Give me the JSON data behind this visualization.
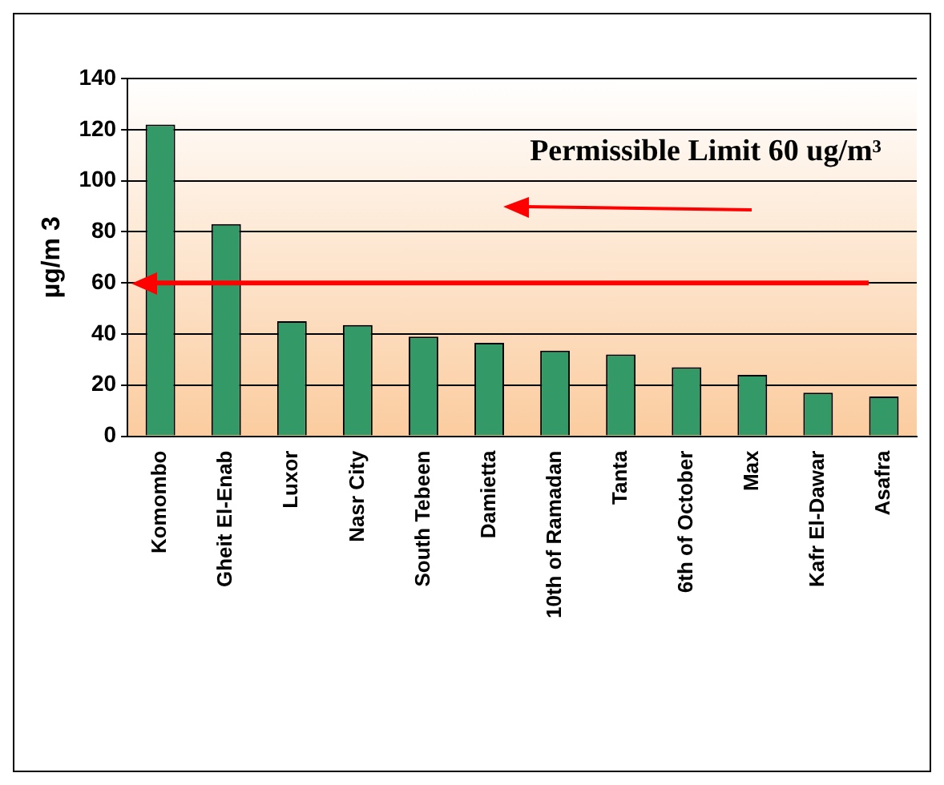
{
  "chart_data": {
    "type": "bar",
    "ylabel": "µg/m 3",
    "categories": [
      "Komombo",
      "Gheit El-Enab",
      "Luxor",
      "Nasr City",
      "South Tebeen",
      "Damietta",
      "10th of Ramadan",
      "Tanta",
      "6th of October",
      "Max",
      "Kafr El-Dawar",
      "Asafra"
    ],
    "values": [
      122,
      83,
      45,
      43.5,
      39,
      36.5,
      33.5,
      32,
      27,
      24,
      17,
      15.5
    ],
    "color": "#339966",
    "ylim": [
      0,
      140
    ],
    "yticks": [
      0,
      20,
      40,
      60,
      80,
      100,
      120,
      140
    ],
    "grid": "y",
    "ref_lines": [
      {
        "axis": "y",
        "value": 60,
        "color": "#ff0000"
      }
    ],
    "annotations": [
      "Permissible Limit 60 ug/m³"
    ]
  }
}
